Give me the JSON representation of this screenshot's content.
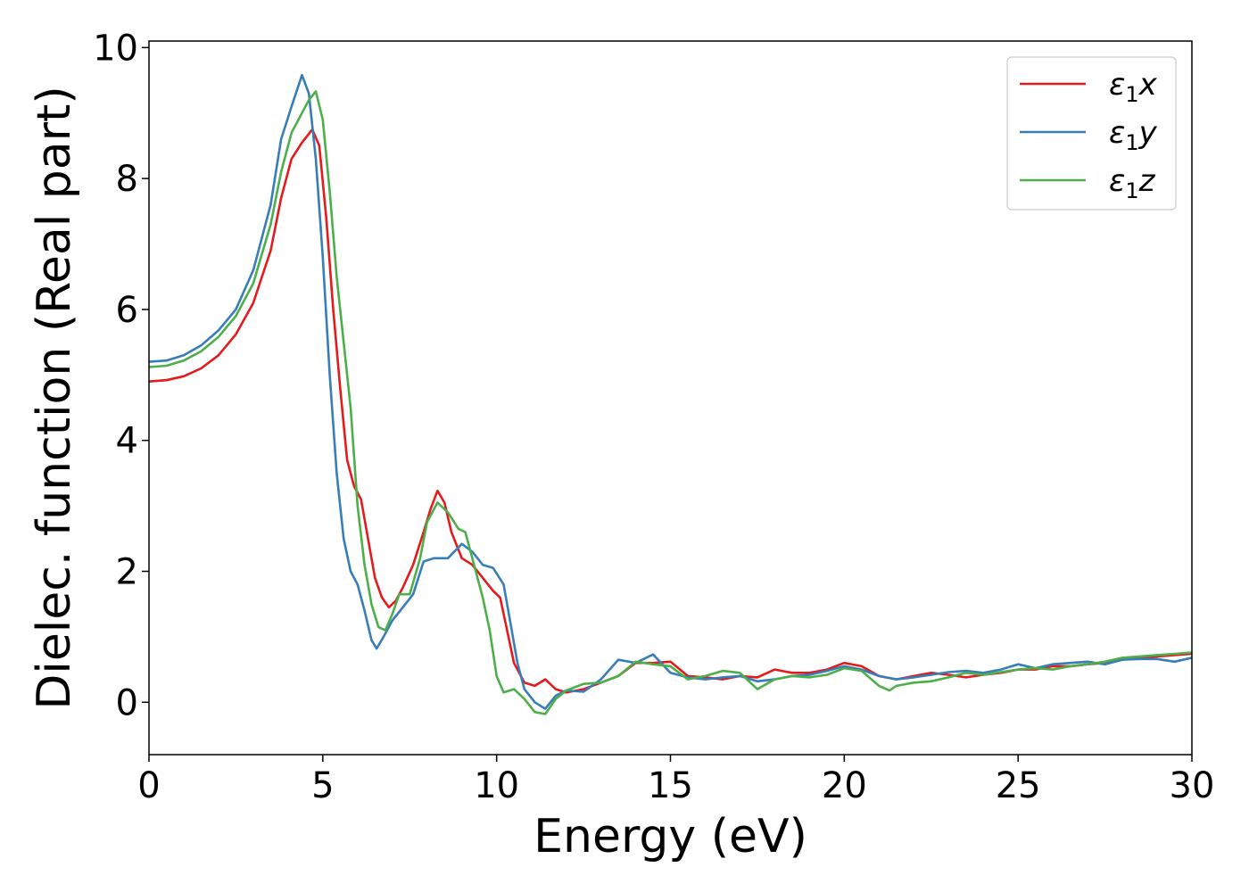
{
  "chart_data": {
    "type": "line",
    "xlabel": "Energy (eV)",
    "ylabel": "Dielec. function (Real part)",
    "xlim": [
      0,
      30
    ],
    "ylim": [
      -0.8,
      10.1
    ],
    "xticks": [
      "0",
      "5",
      "10",
      "15",
      "20",
      "25",
      "30"
    ],
    "yticks": [
      "0",
      "2",
      "4",
      "6",
      "8",
      "10"
    ],
    "grid": false,
    "legend_position": "top-right",
    "series": [
      {
        "name": "ε1x",
        "symbol": "ε",
        "subscript": "1",
        "component": "x",
        "color": "#e41a1c",
        "points": [
          [
            0,
            4.9
          ],
          [
            0.5,
            4.92
          ],
          [
            1,
            4.98
          ],
          [
            1.5,
            5.1
          ],
          [
            2,
            5.3
          ],
          [
            2.5,
            5.62
          ],
          [
            3,
            6.1
          ],
          [
            3.5,
            6.9
          ],
          [
            3.8,
            7.7
          ],
          [
            4.1,
            8.3
          ],
          [
            4.4,
            8.55
          ],
          [
            4.7,
            8.75
          ],
          [
            4.9,
            8.5
          ],
          [
            5.1,
            7.4
          ],
          [
            5.3,
            6.0
          ],
          [
            5.5,
            4.8
          ],
          [
            5.7,
            3.7
          ],
          [
            5.9,
            3.3
          ],
          [
            6.1,
            3.1
          ],
          [
            6.3,
            2.5
          ],
          [
            6.5,
            1.9
          ],
          [
            6.7,
            1.6
          ],
          [
            6.9,
            1.45
          ],
          [
            7.1,
            1.55
          ],
          [
            7.3,
            1.75
          ],
          [
            7.6,
            2.1
          ],
          [
            7.9,
            2.6
          ],
          [
            8.1,
            2.95
          ],
          [
            8.3,
            3.23
          ],
          [
            8.5,
            3.05
          ],
          [
            8.7,
            2.6
          ],
          [
            9.0,
            2.2
          ],
          [
            9.3,
            2.1
          ],
          [
            9.6,
            1.9
          ],
          [
            9.9,
            1.7
          ],
          [
            10.1,
            1.6
          ],
          [
            10.3,
            1.1
          ],
          [
            10.5,
            0.6
          ],
          [
            10.8,
            0.3
          ],
          [
            11.1,
            0.25
          ],
          [
            11.4,
            0.35
          ],
          [
            11.7,
            0.2
          ],
          [
            12.0,
            0.15
          ],
          [
            12.5,
            0.2
          ],
          [
            13.0,
            0.3
          ],
          [
            13.5,
            0.4
          ],
          [
            14.0,
            0.6
          ],
          [
            14.5,
            0.6
          ],
          [
            15.0,
            0.62
          ],
          [
            15.5,
            0.4
          ],
          [
            16.0,
            0.38
          ],
          [
            16.5,
            0.35
          ],
          [
            17.0,
            0.4
          ],
          [
            17.5,
            0.38
          ],
          [
            18.0,
            0.5
          ],
          [
            18.5,
            0.45
          ],
          [
            19.0,
            0.45
          ],
          [
            19.5,
            0.5
          ],
          [
            20.0,
            0.6
          ],
          [
            20.5,
            0.55
          ],
          [
            21.0,
            0.4
          ],
          [
            21.5,
            0.35
          ],
          [
            22.0,
            0.4
          ],
          [
            22.5,
            0.45
          ],
          [
            23.0,
            0.42
          ],
          [
            23.5,
            0.38
          ],
          [
            24.0,
            0.42
          ],
          [
            24.5,
            0.45
          ],
          [
            25.0,
            0.5
          ],
          [
            25.5,
            0.5
          ],
          [
            26.0,
            0.55
          ],
          [
            26.5,
            0.55
          ],
          [
            27.0,
            0.58
          ],
          [
            27.5,
            0.6
          ],
          [
            28.0,
            0.65
          ],
          [
            28.5,
            0.68
          ],
          [
            29.0,
            0.7
          ],
          [
            29.5,
            0.72
          ],
          [
            30.0,
            0.74
          ]
        ]
      },
      {
        "name": "ε1y",
        "symbol": "ε",
        "subscript": "1",
        "component": "y",
        "color": "#377eb8",
        "points": [
          [
            0,
            5.2
          ],
          [
            0.5,
            5.22
          ],
          [
            1,
            5.3
          ],
          [
            1.5,
            5.45
          ],
          [
            2,
            5.68
          ],
          [
            2.5,
            6.0
          ],
          [
            3,
            6.6
          ],
          [
            3.5,
            7.6
          ],
          [
            3.8,
            8.6
          ],
          [
            4.1,
            9.1
          ],
          [
            4.4,
            9.58
          ],
          [
            4.6,
            9.3
          ],
          [
            4.8,
            8.3
          ],
          [
            5.0,
            6.8
          ],
          [
            5.2,
            5.0
          ],
          [
            5.4,
            3.5
          ],
          [
            5.6,
            2.5
          ],
          [
            5.8,
            2.0
          ],
          [
            6.0,
            1.8
          ],
          [
            6.2,
            1.4
          ],
          [
            6.4,
            0.95
          ],
          [
            6.55,
            0.82
          ],
          [
            6.8,
            1.05
          ],
          [
            7.0,
            1.25
          ],
          [
            7.3,
            1.45
          ],
          [
            7.6,
            1.65
          ],
          [
            7.9,
            2.15
          ],
          [
            8.2,
            2.2
          ],
          [
            8.6,
            2.2
          ],
          [
            9.0,
            2.42
          ],
          [
            9.3,
            2.3
          ],
          [
            9.6,
            2.1
          ],
          [
            9.9,
            2.05
          ],
          [
            10.2,
            1.8
          ],
          [
            10.4,
            1.2
          ],
          [
            10.6,
            0.6
          ],
          [
            10.8,
            0.2
          ],
          [
            11.1,
            0.0
          ],
          [
            11.4,
            -0.1
          ],
          [
            11.7,
            0.1
          ],
          [
            12.0,
            0.18
          ],
          [
            12.5,
            0.16
          ],
          [
            13.0,
            0.35
          ],
          [
            13.5,
            0.65
          ],
          [
            14.0,
            0.6
          ],
          [
            14.5,
            0.73
          ],
          [
            15.0,
            0.45
          ],
          [
            15.5,
            0.38
          ],
          [
            16.0,
            0.35
          ],
          [
            16.5,
            0.38
          ],
          [
            17.0,
            0.4
          ],
          [
            17.5,
            0.32
          ],
          [
            18.0,
            0.35
          ],
          [
            18.5,
            0.4
          ],
          [
            19.0,
            0.42
          ],
          [
            19.5,
            0.48
          ],
          [
            20.0,
            0.55
          ],
          [
            20.5,
            0.5
          ],
          [
            21.0,
            0.4
          ],
          [
            21.5,
            0.35
          ],
          [
            22.0,
            0.38
          ],
          [
            22.5,
            0.42
          ],
          [
            23.0,
            0.46
          ],
          [
            23.5,
            0.48
          ],
          [
            24.0,
            0.45
          ],
          [
            24.5,
            0.5
          ],
          [
            25.0,
            0.58
          ],
          [
            25.5,
            0.52
          ],
          [
            26.0,
            0.58
          ],
          [
            26.5,
            0.6
          ],
          [
            27.0,
            0.62
          ],
          [
            27.5,
            0.58
          ],
          [
            28.0,
            0.65
          ],
          [
            28.5,
            0.66
          ],
          [
            29.0,
            0.66
          ],
          [
            29.5,
            0.62
          ],
          [
            30.0,
            0.68
          ]
        ]
      },
      {
        "name": "ε1z",
        "symbol": "ε",
        "subscript": "1",
        "component": "z",
        "color": "#4daf4a",
        "points": [
          [
            0,
            5.12
          ],
          [
            0.5,
            5.14
          ],
          [
            1,
            5.22
          ],
          [
            1.5,
            5.36
          ],
          [
            2,
            5.58
          ],
          [
            2.5,
            5.9
          ],
          [
            3,
            6.4
          ],
          [
            3.5,
            7.3
          ],
          [
            3.8,
            8.1
          ],
          [
            4.1,
            8.7
          ],
          [
            4.4,
            9.0
          ],
          [
            4.6,
            9.2
          ],
          [
            4.8,
            9.33
          ],
          [
            5.0,
            8.9
          ],
          [
            5.2,
            7.8
          ],
          [
            5.4,
            6.5
          ],
          [
            5.6,
            5.5
          ],
          [
            5.8,
            4.5
          ],
          [
            6.0,
            3.0
          ],
          [
            6.2,
            2.1
          ],
          [
            6.4,
            1.5
          ],
          [
            6.6,
            1.15
          ],
          [
            6.8,
            1.1
          ],
          [
            7.0,
            1.35
          ],
          [
            7.2,
            1.65
          ],
          [
            7.5,
            1.65
          ],
          [
            7.8,
            2.2
          ],
          [
            8.0,
            2.75
          ],
          [
            8.3,
            3.05
          ],
          [
            8.6,
            2.9
          ],
          [
            8.9,
            2.65
          ],
          [
            9.1,
            2.6
          ],
          [
            9.3,
            2.2
          ],
          [
            9.6,
            1.6
          ],
          [
            9.8,
            1.1
          ],
          [
            10.0,
            0.4
          ],
          [
            10.2,
            0.15
          ],
          [
            10.5,
            0.2
          ],
          [
            10.8,
            0.05
          ],
          [
            11.1,
            -0.15
          ],
          [
            11.4,
            -0.18
          ],
          [
            11.7,
            0.05
          ],
          [
            12.0,
            0.18
          ],
          [
            12.5,
            0.28
          ],
          [
            13.0,
            0.3
          ],
          [
            13.5,
            0.4
          ],
          [
            14.0,
            0.62
          ],
          [
            14.5,
            0.58
          ],
          [
            15.0,
            0.55
          ],
          [
            15.5,
            0.35
          ],
          [
            16.0,
            0.4
          ],
          [
            16.5,
            0.48
          ],
          [
            17.0,
            0.45
          ],
          [
            17.5,
            0.2
          ],
          [
            18.0,
            0.35
          ],
          [
            18.5,
            0.4
          ],
          [
            19.0,
            0.38
          ],
          [
            19.5,
            0.42
          ],
          [
            20.0,
            0.52
          ],
          [
            20.5,
            0.48
          ],
          [
            21.0,
            0.25
          ],
          [
            21.3,
            0.18
          ],
          [
            21.5,
            0.25
          ],
          [
            22.0,
            0.3
          ],
          [
            22.5,
            0.32
          ],
          [
            23.0,
            0.38
          ],
          [
            23.5,
            0.45
          ],
          [
            24.0,
            0.42
          ],
          [
            24.5,
            0.46
          ],
          [
            25.0,
            0.5
          ],
          [
            25.5,
            0.52
          ],
          [
            26.0,
            0.5
          ],
          [
            26.5,
            0.55
          ],
          [
            27.0,
            0.58
          ],
          [
            27.5,
            0.62
          ],
          [
            28.0,
            0.68
          ],
          [
            28.5,
            0.7
          ],
          [
            29.0,
            0.72
          ],
          [
            29.5,
            0.74
          ],
          [
            30.0,
            0.76
          ]
        ]
      }
    ]
  }
}
